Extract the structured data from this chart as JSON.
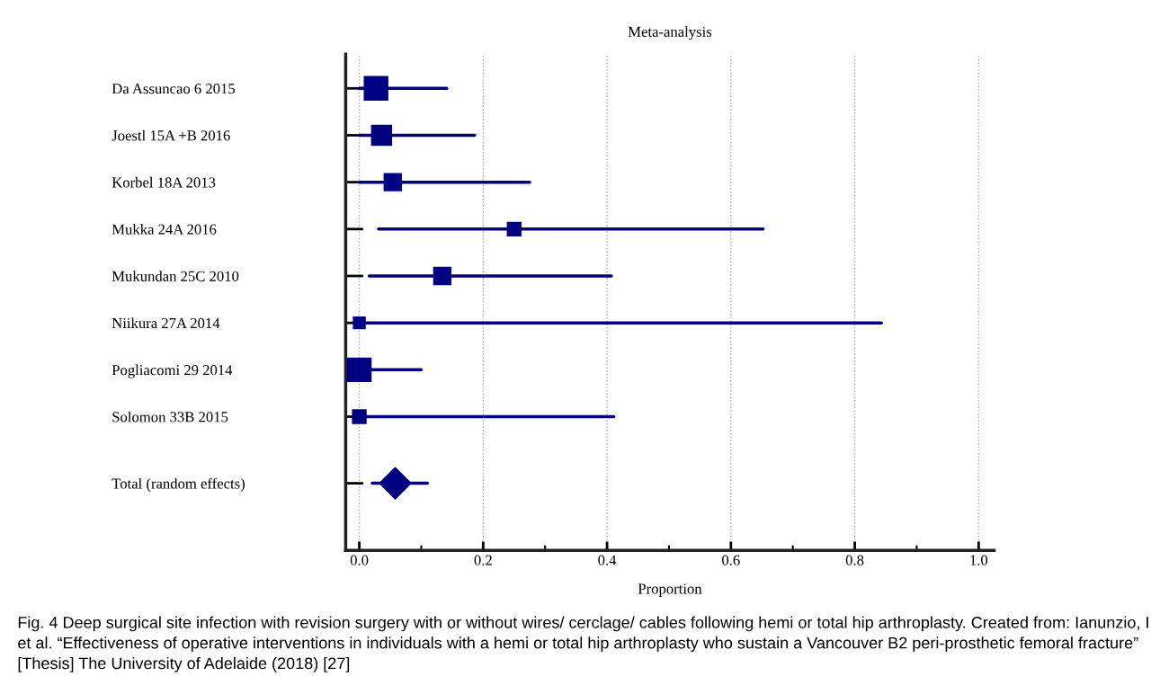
{
  "chart_data": {
    "type": "bubble",
    "orientation": "horizontal",
    "title": "Meta-analysis",
    "xlabel": "Proportion",
    "categories": [
      "Da Assuncao 6 2015",
      "Joestl 15A +B 2016",
      "Korbel 18A 2013",
      "Mukka 24A 2016",
      "Mukundan 25C 2010",
      "Niikura 27A 2014",
      "Pogliacomi 29 2014",
      "Solomon 33B 2015",
      "Total (random effects)"
    ],
    "series": [
      {
        "type": "bubble",
        "marker": "square",
        "color": "#000080",
        "values": [
          0.027,
          0.036,
          0.054,
          0.25,
          0.134,
          0.0,
          0.0,
          0.0,
          null
        ],
        "sizes": [
          1,
          0.72,
          0.53,
          0.33,
          0.53,
          0.25,
          1,
          0.33,
          null
        ],
        "errors": [
          [
            0,
            0.141
          ],
          [
            0,
            0.186
          ],
          [
            0,
            0.275
          ],
          [
            0.031,
            0.652
          ],
          [
            0.016,
            0.407
          ],
          [
            0,
            0.843
          ],
          [
            0,
            0.1
          ],
          [
            0,
            0.411
          ],
          null
        ]
      },
      {
        "type": "scatter",
        "marker": "diamond",
        "color": "#000080",
        "values": [
          null,
          null,
          null,
          null,
          null,
          null,
          null,
          null,
          0.058
        ],
        "errors": [
          null,
          null,
          null,
          null,
          null,
          null,
          null,
          null,
          [
            0.021,
            0.11
          ]
        ]
      }
    ],
    "xlim": [
      -0.022,
      1.025
    ],
    "xticks": [
      {
        "value": 0,
        "label": "0.0"
      },
      {
        "value": 0.1,
        "label": null
      },
      {
        "value": 0.2,
        "label": "0.2"
      },
      {
        "value": 0.3,
        "label": null
      },
      {
        "value": 0.4,
        "label": "0.4"
      },
      {
        "value": 0.5,
        "label": null
      },
      {
        "value": 0.6,
        "label": "0.6"
      },
      {
        "value": 0.7,
        "label": null
      },
      {
        "value": 0.8,
        "label": "0.8"
      },
      {
        "value": 0.9,
        "label": null
      },
      {
        "value": 1.0,
        "label": "1.0"
      }
    ],
    "grid": "x",
    "annotations": [
      "Fig. 4 Deep surgical site infection with revision surgery with or without wires/ cerclage/ cables following hemi or total hip arthroplasty. Created from: Ianunzio, I et al. “Effectiveness of operative interventions in individuals with a hemi or total hip arthroplasty who sustain a Vancouver B2 peri-prosthetic femoral fracture” [Thesis] The University of Adelaide (2018) [27]"
    ]
  }
}
